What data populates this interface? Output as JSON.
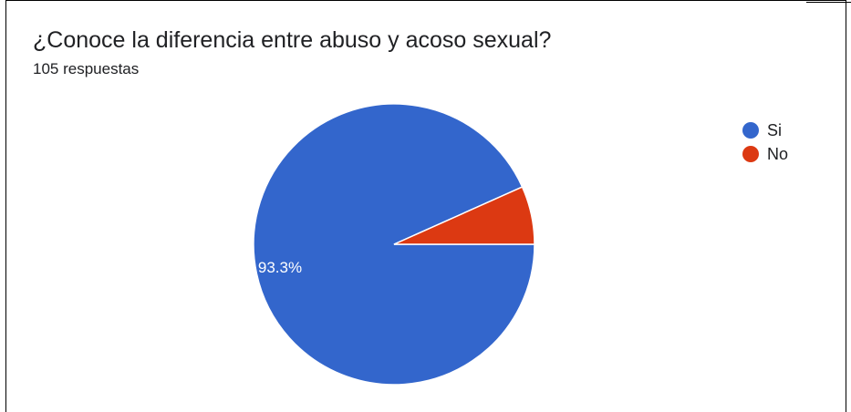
{
  "header": {
    "title": "¿Conoce la diferencia entre abuso y acoso sexual?",
    "subtitle": "105 respuestas"
  },
  "chart_data": {
    "type": "pie",
    "title": "¿Conoce la diferencia entre abuso y acoso sexual?",
    "subtitle": "105 respuestas",
    "legend_position": "right",
    "slices": [
      {
        "label": "Si",
        "value": 93.3,
        "color": "#3366cc",
        "data_label": "93.3%"
      },
      {
        "label": "No",
        "value": 6.7,
        "color": "#dc3912",
        "data_label": ""
      }
    ]
  }
}
